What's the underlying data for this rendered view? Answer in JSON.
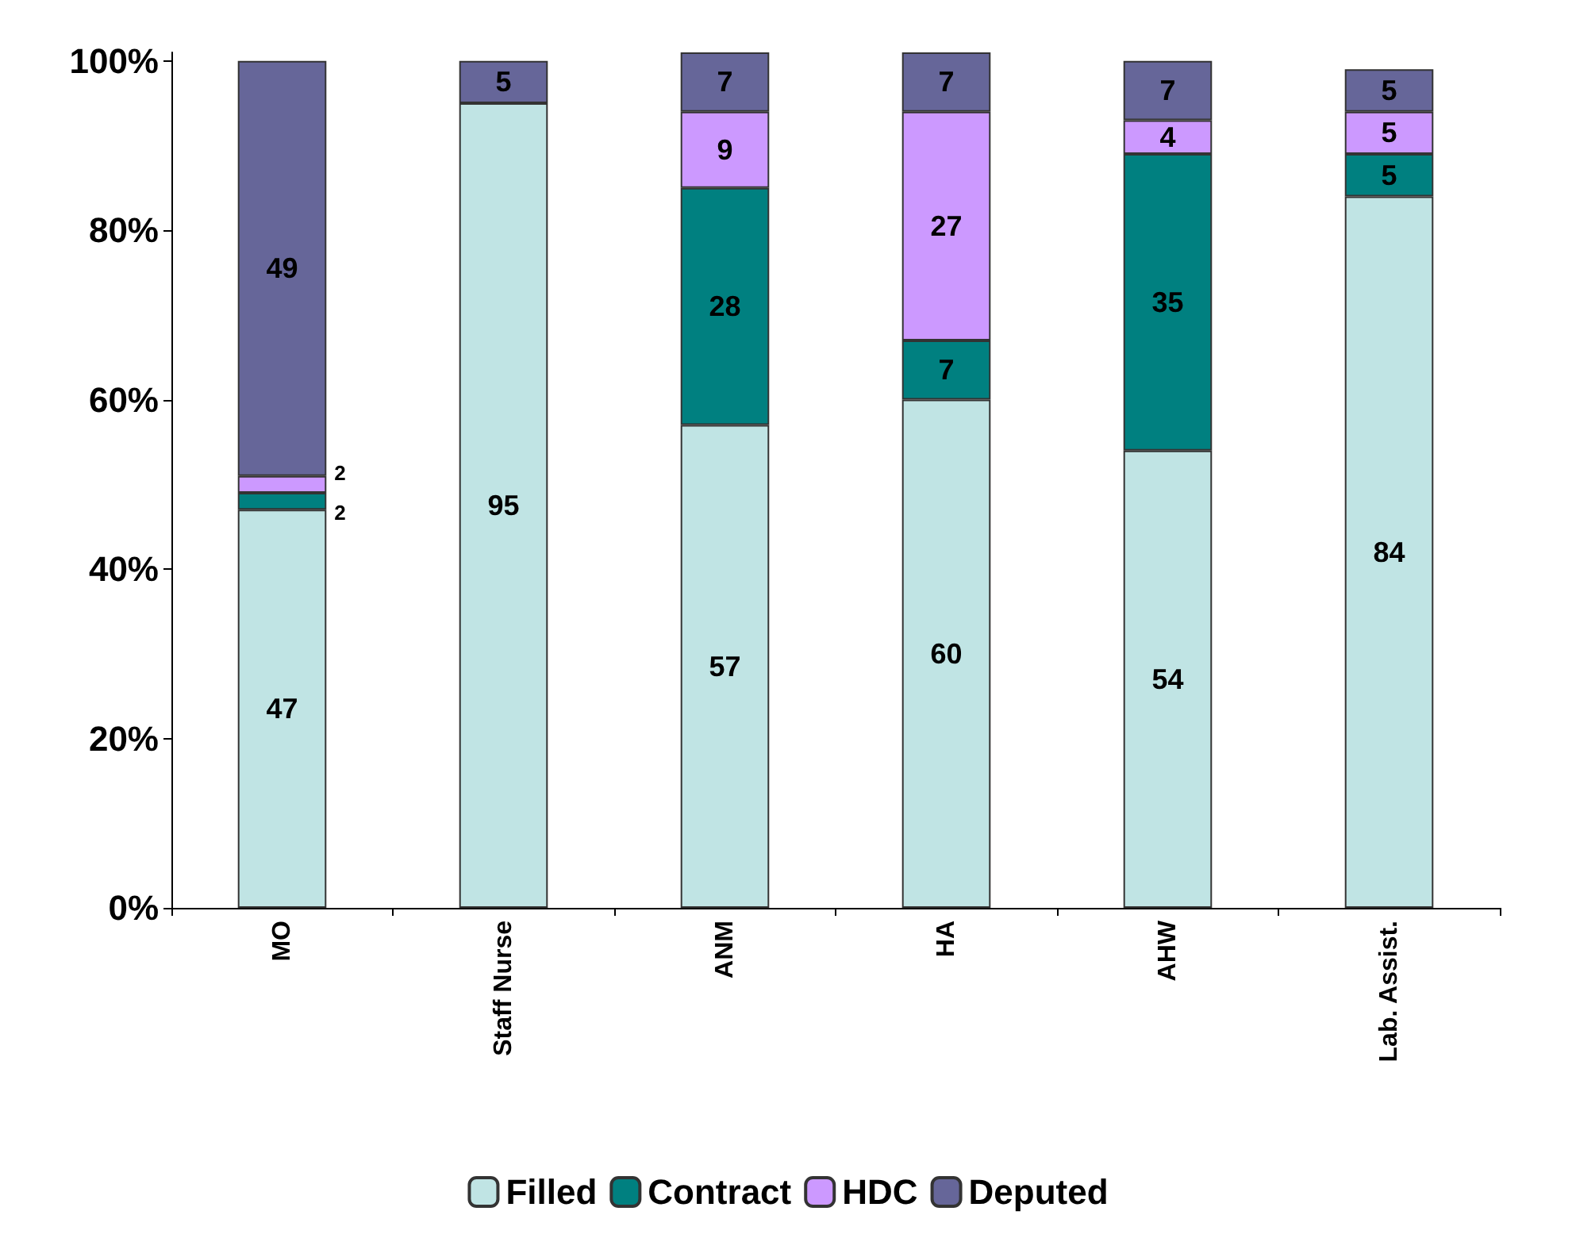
{
  "chart_data": {
    "type": "bar",
    "stacked": true,
    "categories": [
      "MO",
      "Staff Nurse",
      "ANM",
      "HA",
      "AHW",
      "Lab. Assist."
    ],
    "series": [
      {
        "name": "Filled",
        "color": "#c0e4e4",
        "values": [
          47,
          95,
          57,
          60,
          54,
          84
        ]
      },
      {
        "name": "Contract",
        "color": "#008080",
        "values": [
          2,
          null,
          28,
          7,
          35,
          5
        ]
      },
      {
        "name": "HDC",
        "color": "#cc99ff",
        "values": [
          2,
          null,
          9,
          27,
          4,
          5
        ]
      },
      {
        "name": "Deputed",
        "color": "#666699",
        "values": [
          49,
          5,
          7,
          7,
          7,
          5
        ]
      }
    ],
    "ylim": [
      0,
      101
    ],
    "yticks": [
      {
        "value": 0,
        "label": "0%"
      },
      {
        "value": 20,
        "label": "20%"
      },
      {
        "value": 40,
        "label": "40%"
      },
      {
        "value": 60,
        "label": "60%"
      },
      {
        "value": 80,
        "label": "80%"
      },
      {
        "value": 100,
        "label": "100%"
      }
    ],
    "data_labels": true,
    "legend": "bottom",
    "grid": false
  }
}
